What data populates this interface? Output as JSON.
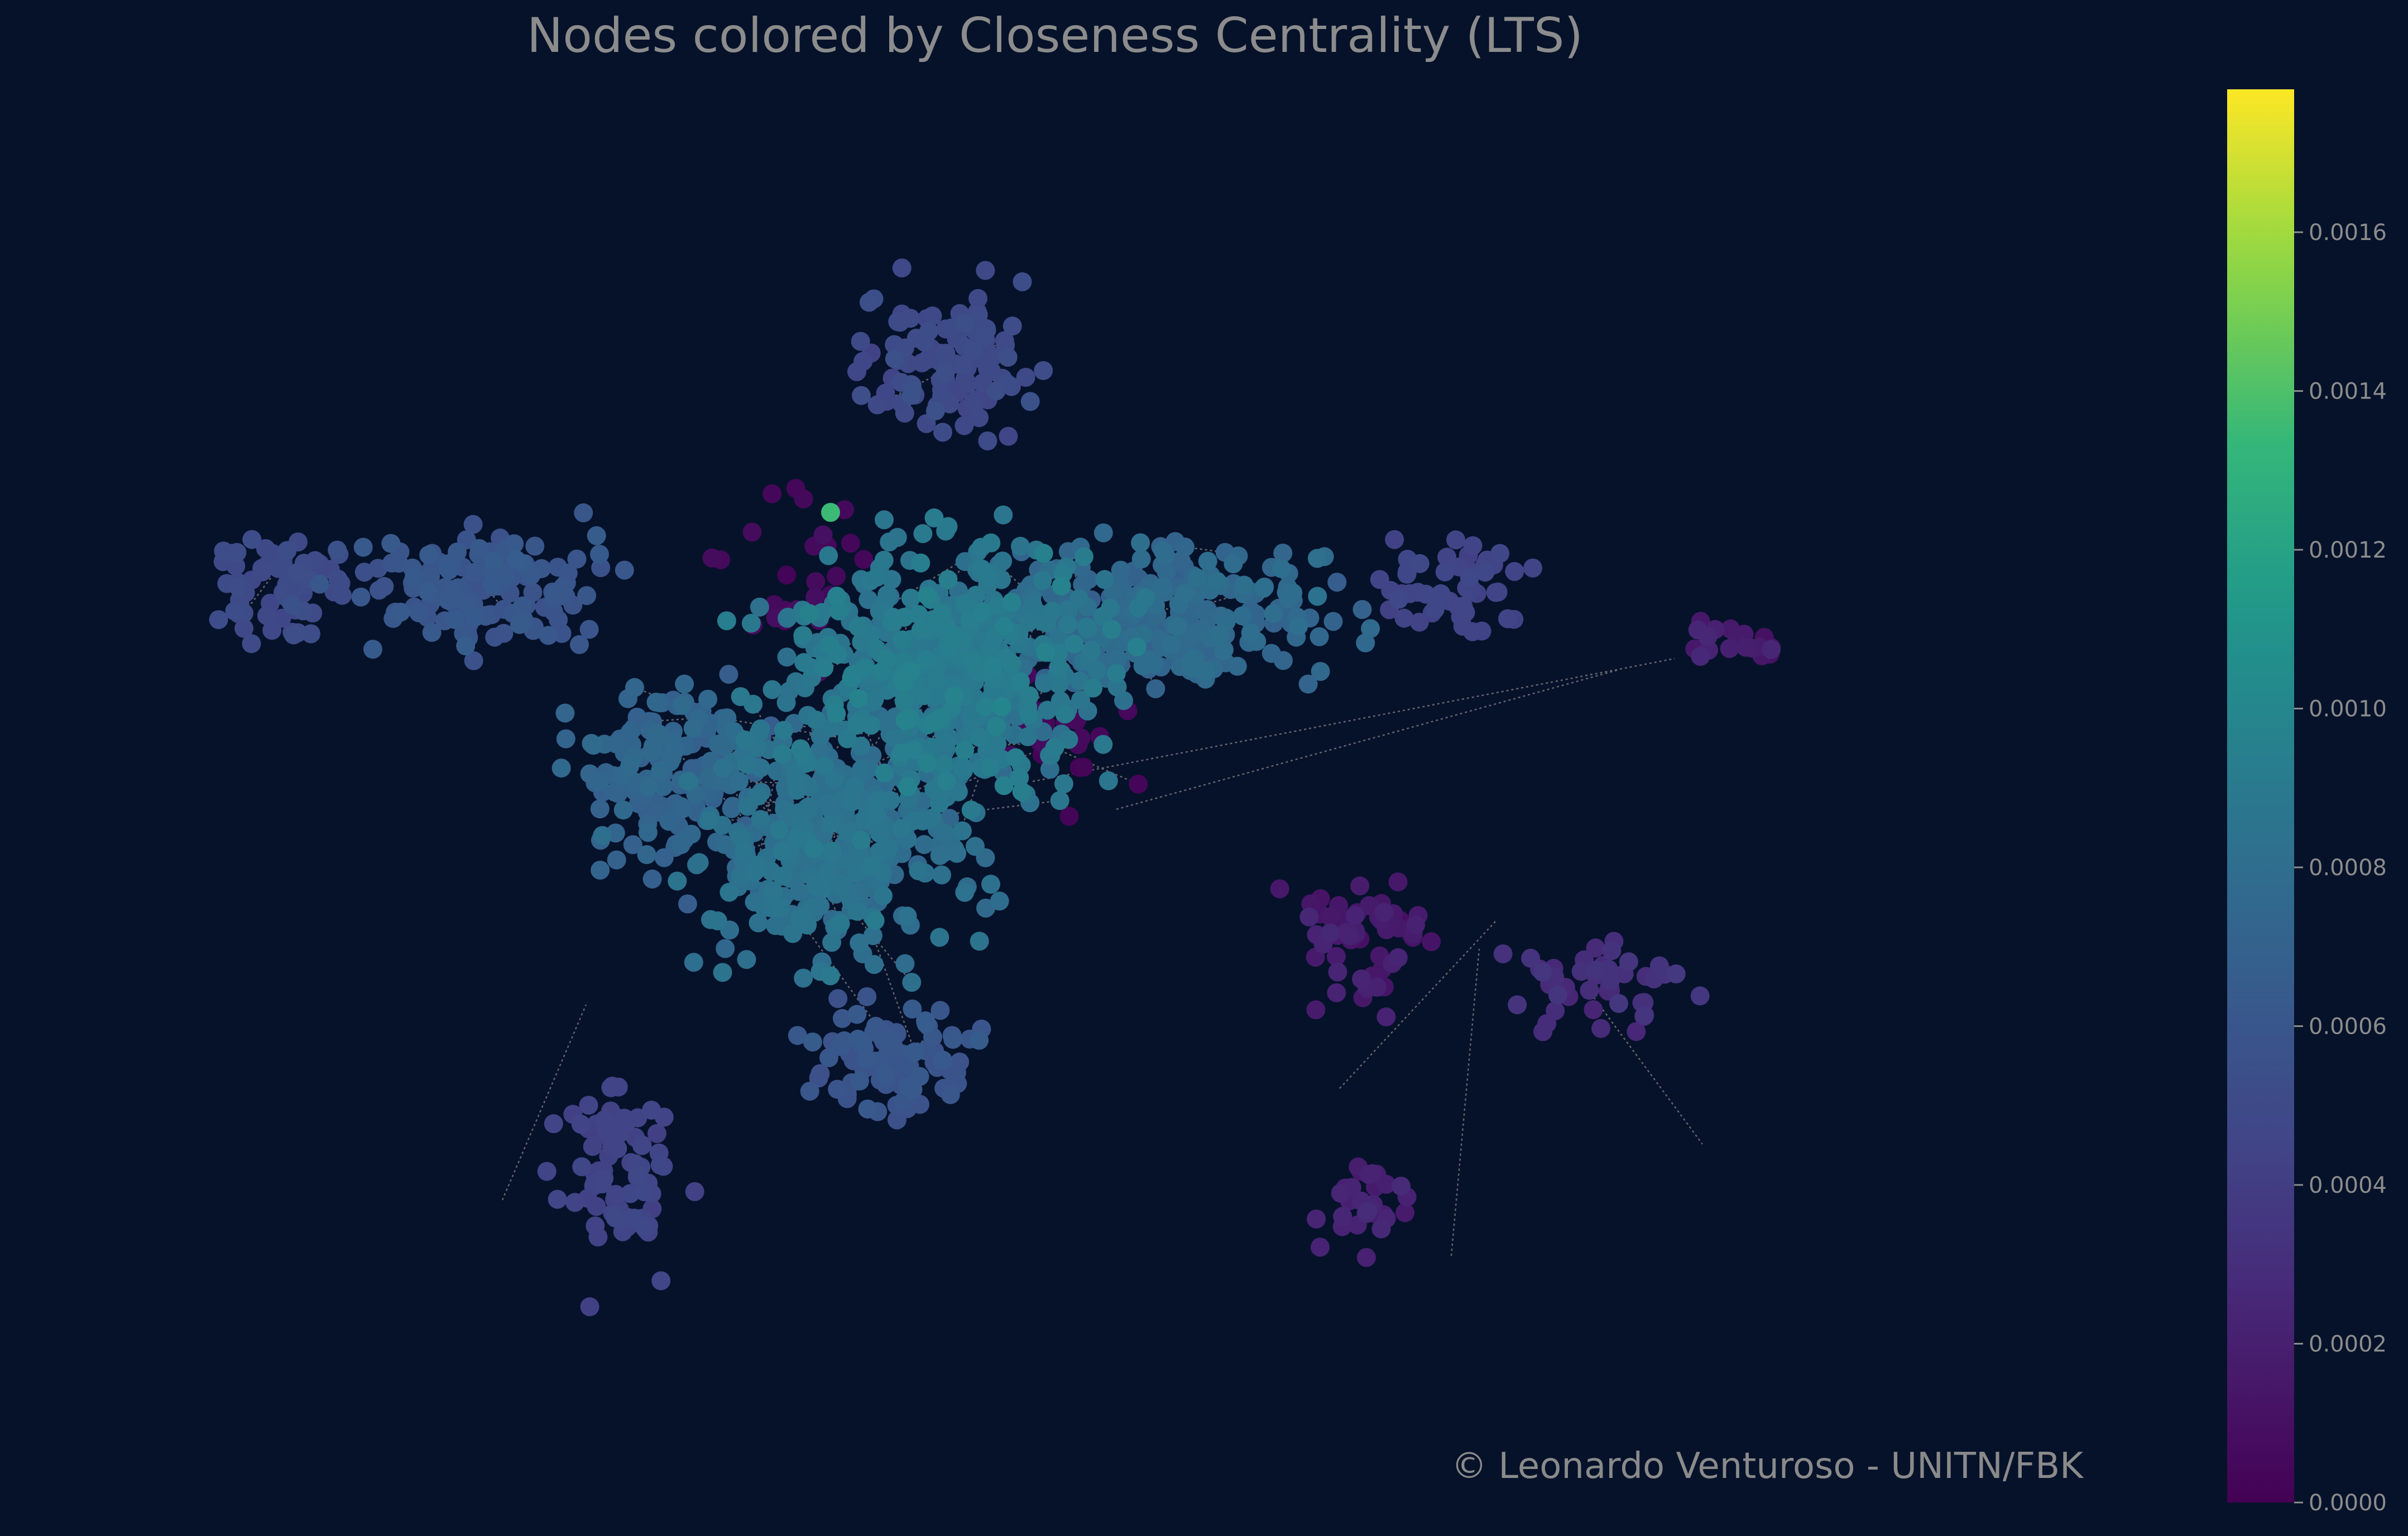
{
  "title": "Nodes colored by Closeness Centrality (LTS)",
  "copyright": "© Leonardo Venturoso - UNITN/FBK",
  "colorbar": {
    "colormap": "viridis",
    "min": 0.0,
    "max": 0.00178,
    "ticks": [
      "0.0000",
      "0.0002",
      "0.0004",
      "0.0006",
      "0.0008",
      "0.0010",
      "0.0012",
      "0.0014",
      "0.0016"
    ],
    "tick_values": [
      0.0,
      0.0002,
      0.0004,
      0.0006,
      0.0008,
      0.001,
      0.0012,
      0.0014,
      0.0016
    ]
  },
  "colors": {
    "background": "#06122a",
    "edge": "#8a8a8a",
    "text": "#8c8c8c"
  }
}
